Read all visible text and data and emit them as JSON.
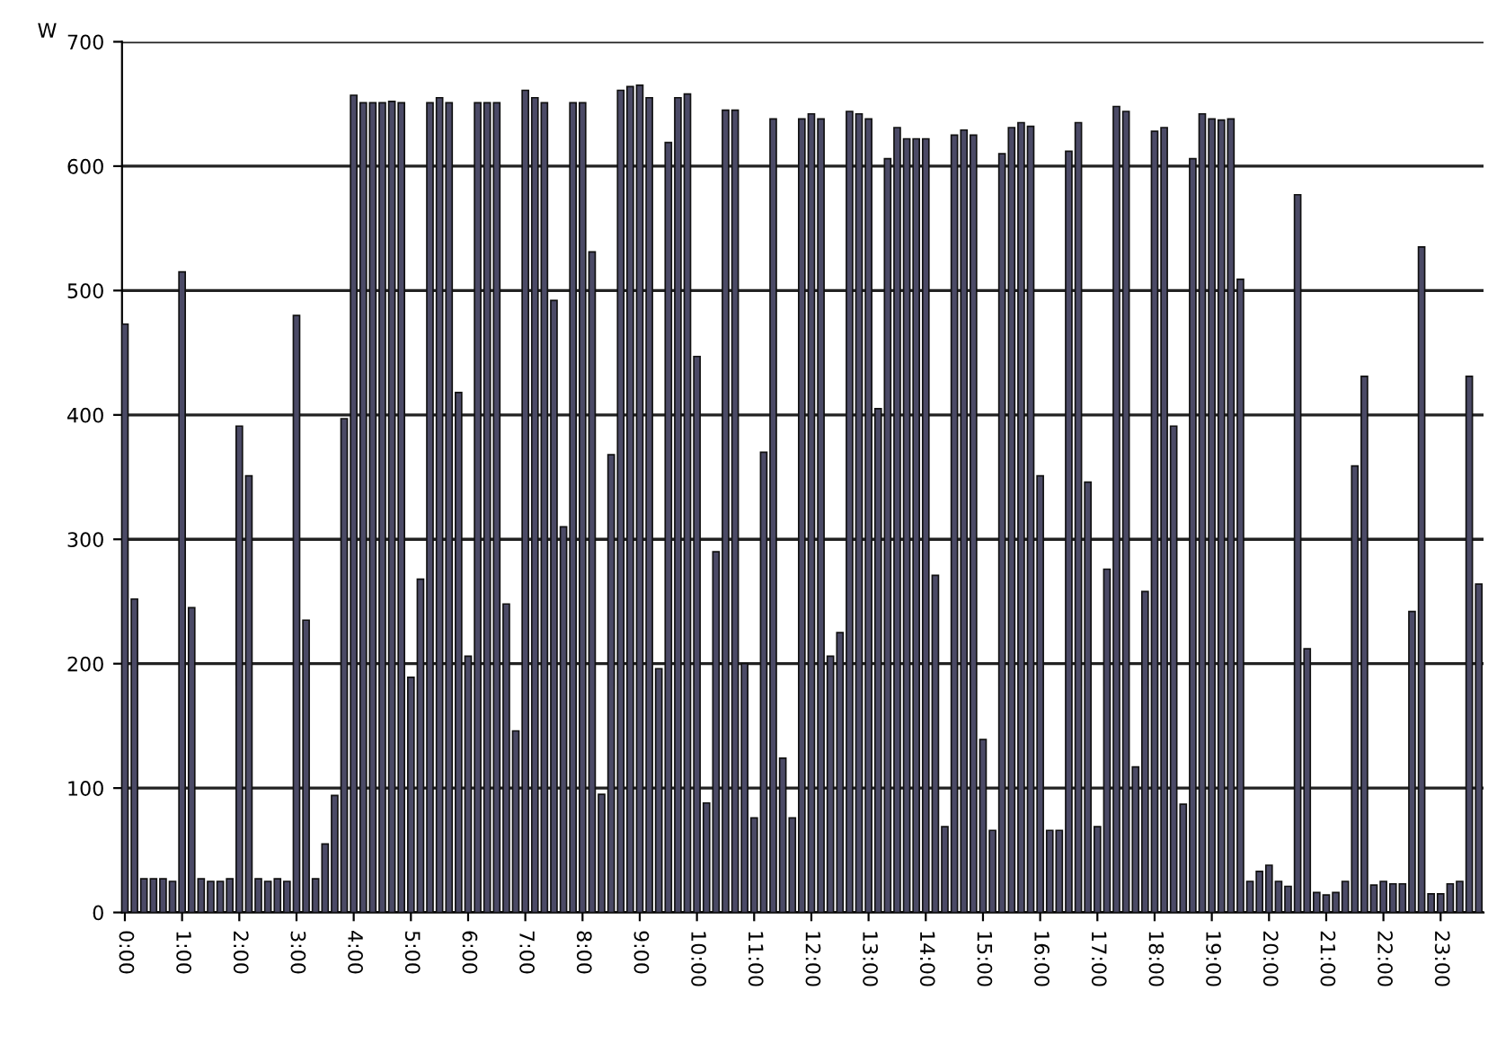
{
  "chart_data": {
    "type": "bar",
    "ylabel": "W",
    "x": [
      0,
      0.167,
      0.333,
      0.5,
      0.667,
      0.833,
      1,
      1.167,
      1.333,
      1.5,
      1.667,
      1.833,
      2,
      2.167,
      2.333,
      2.5,
      2.667,
      2.833,
      3,
      3.167,
      3.333,
      3.5,
      3.667,
      3.833,
      4,
      4.167,
      4.333,
      4.5,
      4.667,
      4.833,
      5,
      5.167,
      5.333,
      5.5,
      5.667,
      5.833,
      6,
      6.167,
      6.333,
      6.5,
      6.667,
      6.833,
      7,
      7.167,
      7.333,
      7.5,
      7.667,
      7.833,
      8,
      8.167,
      8.333,
      8.5,
      8.667,
      8.833,
      9,
      9.167,
      9.333,
      9.5,
      9.667,
      9.833,
      10,
      10.167,
      10.333,
      10.5,
      10.667,
      10.833,
      11,
      11.167,
      11.333,
      11.5,
      11.667,
      11.833,
      12,
      12.167,
      12.333,
      12.5,
      12.667,
      12.833,
      13,
      13.167,
      13.333,
      13.5,
      13.667,
      13.833,
      14,
      14.167,
      14.333,
      14.5,
      14.667,
      14.833,
      15,
      15.167,
      15.333,
      15.5,
      15.667,
      15.833,
      16,
      16.167,
      16.333,
      16.5,
      16.667,
      16.833,
      17,
      17.167,
      17.333,
      17.5,
      17.667,
      17.833,
      18,
      18.167,
      18.333,
      18.5,
      18.667,
      18.833,
      19,
      19.167,
      19.333,
      19.5,
      19.667,
      19.833,
      20,
      20.167,
      20.333,
      20.5,
      20.667,
      20.833,
      21,
      21.167,
      21.333,
      21.5,
      21.667,
      21.833,
      22,
      22.167,
      22.333,
      22.5,
      22.667,
      22.833,
      23,
      23.167,
      23.333,
      23.5,
      23.667
    ],
    "values": [
      473,
      252,
      27,
      27,
      27,
      25,
      515,
      245,
      27,
      25,
      25,
      27,
      391,
      351,
      27,
      25,
      27,
      25,
      480,
      235,
      27,
      55,
      94,
      397,
      657,
      651,
      651,
      651,
      652,
      651,
      189,
      268,
      651,
      655,
      651,
      418,
      206,
      651,
      651,
      651,
      248,
      146,
      661,
      655,
      651,
      492,
      310,
      651,
      651,
      531,
      95,
      368,
      661,
      664,
      665,
      655,
      196,
      619,
      655,
      658,
      447,
      88,
      290,
      645,
      645,
      200,
      76,
      370,
      638,
      124,
      76,
      638,
      642,
      638,
      206,
      225,
      644,
      642,
      638,
      405,
      606,
      631,
      622,
      622,
      622,
      271,
      69,
      625,
      629,
      625,
      139,
      66,
      610,
      631,
      635,
      632,
      351,
      66,
      66,
      612,
      635,
      346,
      69,
      276,
      648,
      644,
      117,
      258,
      628,
      631,
      391,
      87,
      606,
      642,
      638,
      637,
      638,
      509,
      25,
      33,
      38,
      25,
      21,
      577,
      212,
      16,
      14,
      16,
      25,
      359,
      431,
      22,
      25,
      23,
      23,
      242,
      535,
      15,
      15,
      23,
      25,
      431,
      264
    ],
    "color": "#4b4a66",
    "xlim": [
      -0.05,
      23.75
    ],
    "xticks": [
      {
        "value": 0,
        "label": "0:00"
      },
      {
        "value": 1,
        "label": "1:00"
      },
      {
        "value": 2,
        "label": "2:00"
      },
      {
        "value": 3,
        "label": "3:00"
      },
      {
        "value": 4,
        "label": "4:00"
      },
      {
        "value": 5,
        "label": "5:00"
      },
      {
        "value": 6,
        "label": "6:00"
      },
      {
        "value": 7,
        "label": "7:00"
      },
      {
        "value": 8,
        "label": "8:00"
      },
      {
        "value": 9,
        "label": "9:00"
      },
      {
        "value": 10,
        "label": "10:00"
      },
      {
        "value": 11,
        "label": "11:00"
      },
      {
        "value": 12,
        "label": "12:00"
      },
      {
        "value": 13,
        "label": "13:00"
      },
      {
        "value": 14,
        "label": "14:00"
      },
      {
        "value": 15,
        "label": "15:00"
      },
      {
        "value": 16,
        "label": "16:00"
      },
      {
        "value": 17,
        "label": "17:00"
      },
      {
        "value": 18,
        "label": "18:00"
      },
      {
        "value": 19,
        "label": "19:00"
      },
      {
        "value": 20,
        "label": "20:00"
      },
      {
        "value": 21,
        "label": "21:00"
      },
      {
        "value": 22,
        "label": "22:00"
      },
      {
        "value": 23,
        "label": "23:00"
      }
    ],
    "ylim": [
      0,
      700
    ],
    "yticks": [
      0,
      100,
      200,
      300,
      400,
      500,
      600,
      700
    ],
    "grid": "y"
  }
}
